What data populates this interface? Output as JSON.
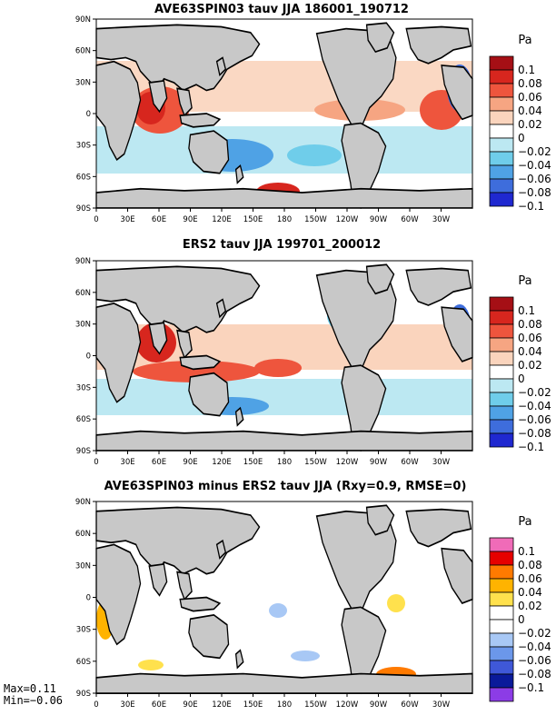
{
  "panels": [
    {
      "title": "AVE63SPIN03 tauv JJA 186001_190712",
      "colorbar": {
        "unit": "Pa",
        "labels": [
          "0.1",
          "0.08",
          "0.06",
          "0.04",
          "0.02",
          "0",
          "−0.02",
          "−0.04",
          "−0.06",
          "−0.08",
          "−0.1"
        ],
        "colors": [
          "#a50f15",
          "#d7261e",
          "#ee553d",
          "#f6a582",
          "#fad4bd",
          "#ffffff",
          "#bce8f2",
          "#6fcdea",
          "#4fa2e5",
          "#3e6ddc",
          "#1f28d0"
        ]
      }
    },
    {
      "title": "ERS2 tauv JJA 199701_200012",
      "colorbar": {
        "unit": "Pa",
        "labels": [
          "0.1",
          "0.08",
          "0.06",
          "0.04",
          "0.02",
          "0",
          "−0.02",
          "−0.04",
          "−0.06",
          "−0.08",
          "−0.1"
        ],
        "colors": [
          "#a50f15",
          "#d7261e",
          "#ee553d",
          "#f6a582",
          "#fad4bd",
          "#ffffff",
          "#bce8f2",
          "#6fcdea",
          "#4fa2e5",
          "#3e6ddc",
          "#1f28d0"
        ]
      }
    },
    {
      "title": "AVE63SPIN03 minus ERS2 tauv JJA (Rxy=0.9, RMSE=0)",
      "colorbar": {
        "unit": "Pa",
        "labels": [
          "0.1",
          "0.08",
          "0.06",
          "0.04",
          "0.02",
          "0",
          "−0.02",
          "−0.04",
          "−0.06",
          "−0.08",
          "−0.1"
        ],
        "colors": [
          "#f06bb8",
          "#e60000",
          "#ff7a00",
          "#ffb300",
          "#ffe14d",
          "#ffffff",
          "#ffffff",
          "#a8c8f5",
          "#6b97ea",
          "#3f58d8",
          "#0a1a9a",
          "#8c3ce6"
        ]
      }
    }
  ],
  "lat_labels": [
    "90N",
    "60N",
    "30N",
    "0",
    "30S",
    "60S",
    "90S"
  ],
  "lon_labels": [
    "0",
    "30E",
    "60E",
    "90E",
    "120E",
    "150E",
    "180",
    "150W",
    "120W",
    "90W",
    "60W",
    "30W"
  ],
  "stats": {
    "max": "Max=0.11",
    "min": "Min=−0.06"
  },
  "colors": {
    "land": "#c8c8c8",
    "coast": "#000000"
  }
}
